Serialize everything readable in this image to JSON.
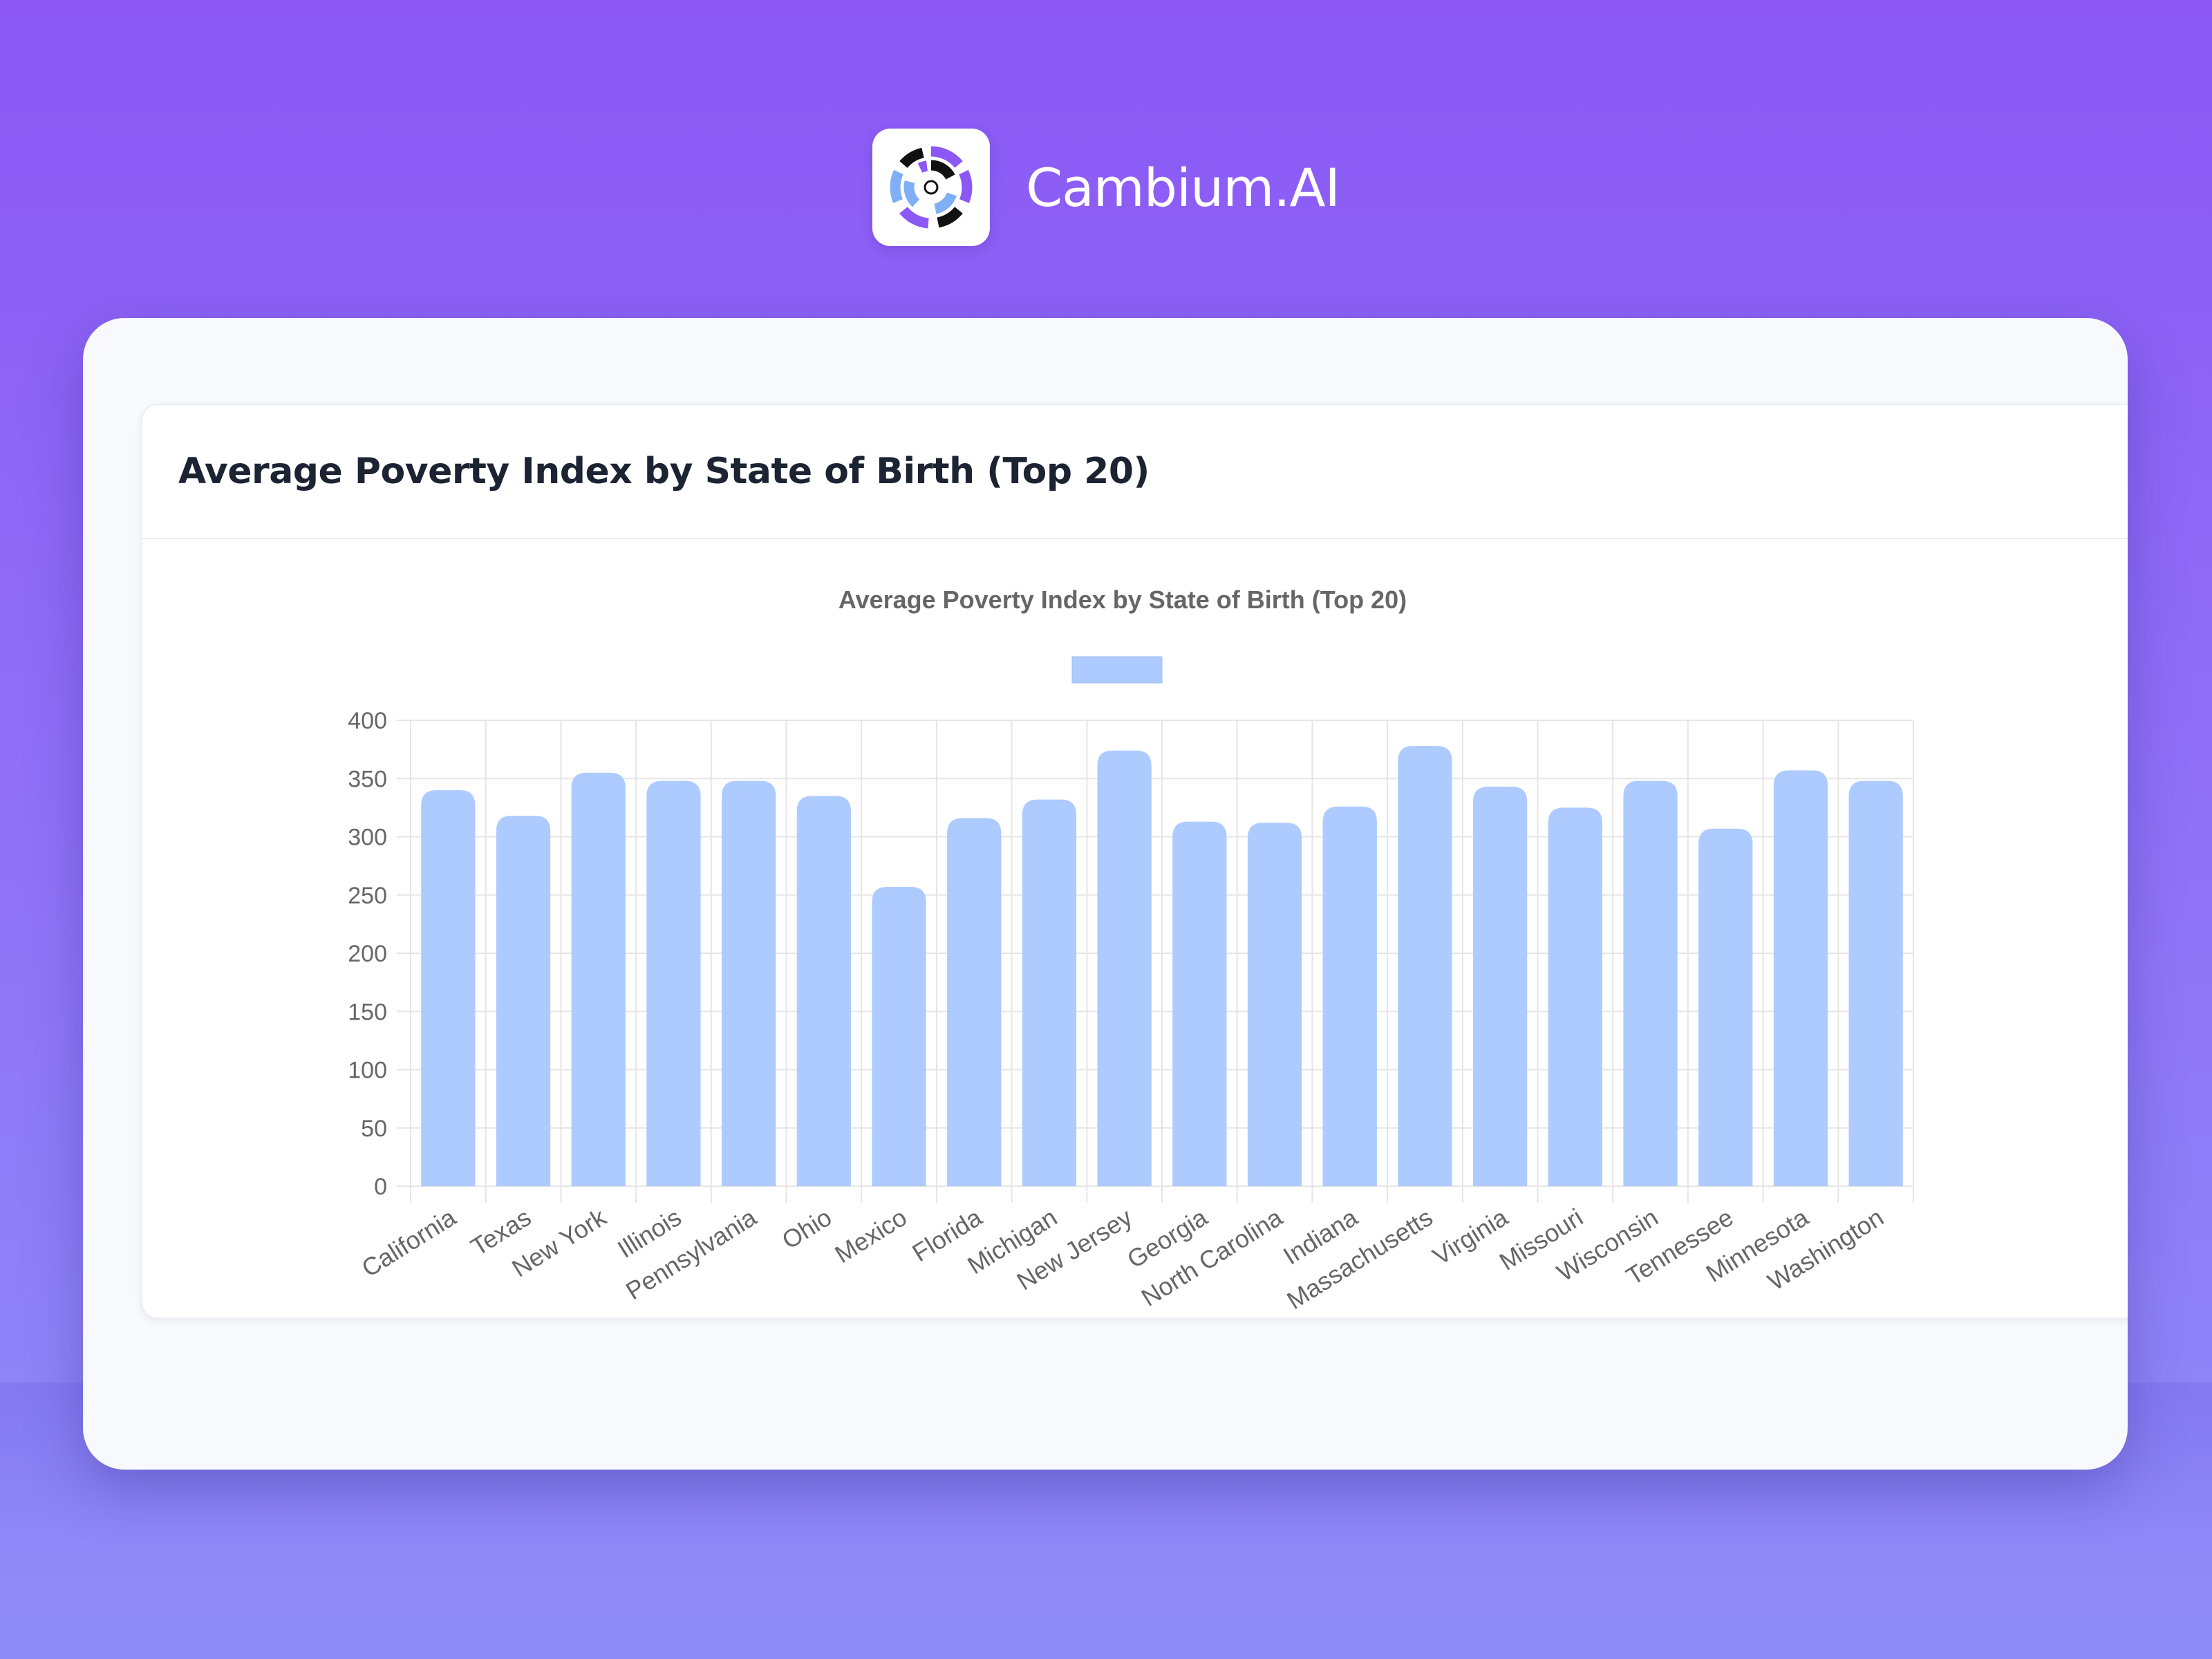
{
  "brand": {
    "name": "Cambium.AI",
    "logo_icon": "cambium-logo-icon"
  },
  "card": {
    "title": "Average Poverty Index by State of Birth (Top 20)"
  },
  "colors": {
    "background_top": "#8b58f5",
    "background_bottom": "#8f8cf8",
    "bar_fill": "#aecbff",
    "grid": "#e5e5e5",
    "axis_text": "#666666"
  },
  "chart_data": {
    "type": "bar",
    "title": "Average Poverty Index by State of Birth (Top 20)",
    "legend": {
      "position": "top",
      "entries": [
        {
          "label": "",
          "color": "#aecbff"
        }
      ]
    },
    "xlabel": "",
    "ylabel": "",
    "ylim": [
      0,
      400
    ],
    "yticks": [
      0,
      50,
      100,
      150,
      200,
      250,
      300,
      350,
      400
    ],
    "grid": true,
    "categories": [
      "California",
      "Texas",
      "New York",
      "Illinois",
      "Pennsylvania",
      "Ohio",
      "Mexico",
      "Florida",
      "Michigan",
      "New Jersey",
      "Georgia",
      "North Carolina",
      "Indiana",
      "Massachusetts",
      "Virginia",
      "Missouri",
      "Wisconsin",
      "Tennessee",
      "Minnesota",
      "Washington"
    ],
    "values": [
      340,
      318,
      355,
      348,
      348,
      335,
      257,
      316,
      332,
      374,
      313,
      312,
      326,
      378,
      343,
      325,
      348,
      307,
      357,
      348
    ]
  }
}
